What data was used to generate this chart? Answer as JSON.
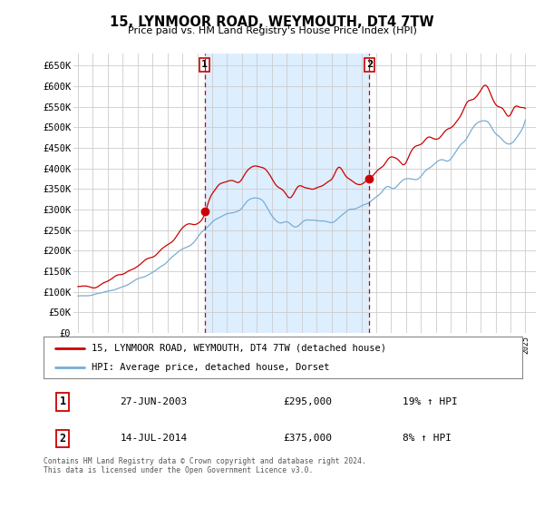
{
  "title": "15, LYNMOOR ROAD, WEYMOUTH, DT4 7TW",
  "subtitle": "Price paid vs. HM Land Registry's House Price Index (HPI)",
  "legend_line1": "15, LYNMOOR ROAD, WEYMOUTH, DT4 7TW (detached house)",
  "legend_line2": "HPI: Average price, detached house, Dorset",
  "footer": "Contains HM Land Registry data © Crown copyright and database right 2024.\nThis data is licensed under the Open Government Licence v3.0.",
  "sale1_date": "27-JUN-2003",
  "sale1_price": "£295,000",
  "sale1_hpi": "19% ↑ HPI",
  "sale1_year": 2003.49,
  "sale2_date": "14-JUL-2014",
  "sale2_price": "£375,000",
  "sale2_hpi": "8% ↑ HPI",
  "sale2_year": 2014.54,
  "red_color": "#cc0000",
  "blue_color": "#7aadd4",
  "shade_color": "#ddeeff",
  "grid_color": "#cccccc",
  "bg_color": "#ffffff",
  "ylim": [
    0,
    680000
  ],
  "yticks": [
    0,
    50000,
    100000,
    150000,
    200000,
    250000,
    300000,
    350000,
    400000,
    450000,
    500000,
    550000,
    600000,
    650000
  ],
  "ytick_labels": [
    "£0",
    "£50K",
    "£100K",
    "£150K",
    "£200K",
    "£250K",
    "£300K",
    "£350K",
    "£400K",
    "£450K",
    "£500K",
    "£550K",
    "£600K",
    "£650K"
  ],
  "xlim_left": 1994.7,
  "xlim_right": 2025.7
}
